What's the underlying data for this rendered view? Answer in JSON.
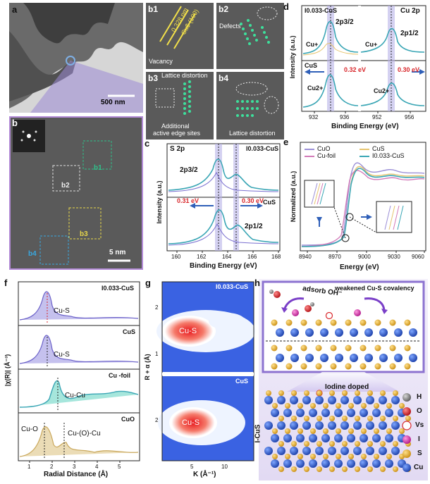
{
  "panel_a": {
    "letter": "a",
    "scale_bar": "500 nm"
  },
  "panel_b": {
    "letter": "b",
    "scale_bar": "5 nm",
    "regions": [
      "b1",
      "b2",
      "b3",
      "b4"
    ]
  },
  "panel_b_insets": [
    {
      "letter": "b1",
      "lines": [
        "0.328 nm",
        "Cu$ (100)"
      ],
      "note": "Vacancy"
    },
    {
      "letter": "b2",
      "note": "Defects"
    },
    {
      "letter": "b3",
      "notes": [
        "Lattice distortion",
        "Additional",
        "active edge sites"
      ]
    },
    {
      "letter": "b4",
      "note": "Lattice distortion"
    }
  ],
  "panel_c": {
    "letter": "c",
    "title": "S 2p",
    "sample_top": "I0.033-CuS",
    "sample_bottom": "CuS",
    "peak1": "2p3/2",
    "peak2": "2p1/2",
    "shift_left": "0.31 eV",
    "shift_right": "0.30 eV",
    "xlabel": "Binding Energy (eV)",
    "ylabel": "Intensity (a.u.)",
    "xticks": [
      "160",
      "162",
      "164",
      "166",
      "168"
    ]
  },
  "panel_d": {
    "letter": "d",
    "title": "Cu 2p",
    "sample_top": "I0.033-CuS",
    "sample_bottom": "CuS",
    "peak1": "2p3/2",
    "peak2": "2p1/2",
    "cu_plus": "Cu+",
    "cu_2plus": "Cu2+",
    "shift_left": "0.32 eV",
    "shift_right": "0.30 eV",
    "xlabel": "Binding Energy (eV)",
    "ylabel": "Intensity (a.u.)",
    "xticks": [
      "932",
      "936",
      "952",
      "956"
    ]
  },
  "panel_e": {
    "letter": "e",
    "legend": [
      "CuO",
      "CuS",
      "Cu-foil",
      "I0.033-CuS"
    ],
    "legend_colors": [
      "#9b8fd6",
      "#e6c46e",
      "#d27ab8",
      "#3aa6b5"
    ],
    "xlabel": "Energy (eV)",
    "ylabel": "Normalized (a.u.)",
    "xticks": [
      "8940",
      "8970",
      "9000",
      "9030",
      "9060"
    ]
  },
  "panel_f": {
    "letter": "f",
    "xlabel": "Radial Distance (Å)",
    "ylabel": "|χ(R)| (Å⁻³)",
    "xticks": [
      "1",
      "2",
      "3",
      "4",
      "5"
    ],
    "rows": [
      {
        "sample": "I0.033-CuS",
        "peak": "Cu-S"
      },
      {
        "sample": "CuS",
        "peak": "Cu-S"
      },
      {
        "sample": "Cu -foil",
        "peak": "Cu-Cu"
      },
      {
        "sample": "CuO",
        "peak": "Cu-O",
        "peak2": "Cu-(O)-Cu"
      }
    ]
  },
  "panel_g": {
    "letter": "g",
    "xlabel": "K (Å⁻¹)",
    "ylabel": "R + α (Å)",
    "top_sample": "I0.033-CuS",
    "bottom_sample": "CuS",
    "feature": "Cu-S",
    "xticks": [
      "5",
      "10"
    ],
    "yticks": [
      "2",
      "1"
    ]
  },
  "panel_h": {
    "letter": "h",
    "top_left": "adsorb OH⁻",
    "top_right": "weakened Cu-S covalency",
    "mid_label": "Iodine doped",
    "side_label": "I-CuS",
    "legend": [
      {
        "sym": "H",
        "color": "#8a8a8a"
      },
      {
        "sym": "O",
        "color": "#d8262a"
      },
      {
        "sym": "Vs",
        "color": "#ffffff"
      },
      {
        "sym": "I",
        "color": "#d22aa8"
      },
      {
        "sym": "S",
        "color": "#e1a623"
      },
      {
        "sym": "Cu",
        "color": "#2358c4"
      }
    ]
  }
}
